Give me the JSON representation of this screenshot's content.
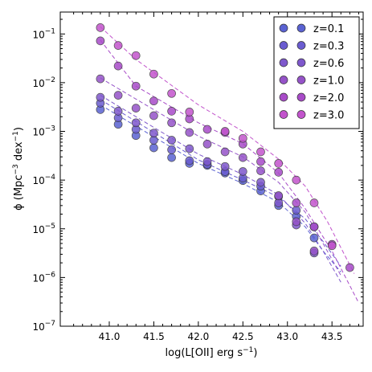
{
  "chart_data": {
    "type": "scatter",
    "xlabel": "log(L[OII] erg s",
    "xlabel_sup": "−1",
    "xlabel_tail": ")",
    "ylabel_pre": "ϕ (Mpc",
    "ylabel_sup1": "−3",
    "ylabel_mid": " dex",
    "ylabel_sup2": "−1",
    "ylabel_tail": ")",
    "xlim": [
      40.45,
      43.85
    ],
    "ylim_log10": [
      -7,
      -0.55
    ],
    "y_scale": "log",
    "xticks": [
      "41.0",
      "41.5",
      "42.0",
      "42.5",
      "43.0",
      "43.5"
    ],
    "xtick_values": [
      41.0,
      41.5,
      42.0,
      42.5,
      43.0,
      43.5
    ],
    "yticks": [
      {
        "base": "10",
        "exp": "−1",
        "value": -1
      },
      {
        "base": "10",
        "exp": "−2",
        "value": -2
      },
      {
        "base": "10",
        "exp": "−3",
        "value": -3
      },
      {
        "base": "10",
        "exp": "−4",
        "value": -4
      },
      {
        "base": "10",
        "exp": "−5",
        "value": -5
      },
      {
        "base": "10",
        "exp": "−6",
        "value": -6
      },
      {
        "base": "10",
        "exp": "−7",
        "value": -7
      }
    ],
    "legend_position": "top-right",
    "grid": false,
    "series": [
      {
        "name": "z=0.1",
        "color": "#5a62d2",
        "points": [
          [
            40.9,
            0.0028
          ],
          [
            41.1,
            0.0014
          ],
          [
            41.3,
            0.00082
          ],
          [
            41.5,
            0.00046
          ],
          [
            41.7,
            0.00029
          ],
          [
            41.9,
            0.00022
          ],
          [
            42.1,
            0.0002
          ],
          [
            42.3,
            0.00014
          ],
          [
            42.5,
            9.8e-05
          ],
          [
            42.7,
            6e-05
          ],
          [
            42.9,
            3e-05
          ],
          [
            43.1,
            1.8e-05
          ],
          [
            43.3,
            6.5e-06
          ]
        ],
        "fit_x": [
          40.9,
          42.0,
          42.5,
          42.9,
          43.2,
          43.4,
          43.6
        ],
        "fit_y": [
          0.0035,
          0.00022,
          8.5e-05,
          3.5e-05,
          1.1e-05,
          3.5e-06,
          1.3e-06
        ]
      },
      {
        "name": "z=0.3",
        "color": "#6a5cd0",
        "points": [
          [
            40.9,
            0.0038
          ],
          [
            41.1,
            0.0019
          ],
          [
            41.3,
            0.0011
          ],
          [
            41.5,
            0.00066
          ],
          [
            41.7,
            0.00042
          ],
          [
            41.9,
            0.00025
          ],
          [
            42.1,
            0.00021
          ],
          [
            42.3,
            0.00015
          ],
          [
            42.5,
            0.00011
          ],
          [
            42.7,
            7.5e-05
          ],
          [
            42.9,
            4.6e-05
          ],
          [
            43.1,
            2.4e-05
          ],
          [
            43.3,
            1.1e-05
          ]
        ],
        "fit_x": [
          40.9,
          42.0,
          42.5,
          42.9,
          43.2,
          43.4,
          43.6
        ],
        "fit_y": [
          0.0045,
          0.00026,
          0.0001,
          4.5e-05,
          1.6e-05,
          5.5e-06,
          1.7e-06
        ]
      },
      {
        "name": "z=0.6",
        "color": "#7e58cc",
        "points": [
          [
            40.9,
            0.005
          ],
          [
            41.1,
            0.0026
          ],
          [
            41.3,
            0.0015
          ],
          [
            41.5,
            0.00092
          ],
          [
            41.7,
            0.00066
          ],
          [
            41.9,
            0.00044
          ],
          [
            42.1,
            0.00024
          ],
          [
            42.3,
            0.00019
          ],
          [
            42.5,
            0.00015
          ],
          [
            42.7,
            9e-05
          ],
          [
            42.9,
            3.4e-05
          ],
          [
            43.1,
            1.2e-05
          ],
          [
            43.3,
            3.2e-06
          ]
        ],
        "fit_x": [
          40.9,
          42.0,
          42.5,
          42.9,
          43.2,
          43.4,
          43.6
        ],
        "fit_y": [
          0.0055,
          0.00034,
          0.00013,
          5e-05,
          1.3e-05,
          3.5e-06,
          8e-07
        ]
      },
      {
        "name": "z=1.0",
        "color": "#9553c8",
        "points": [
          [
            40.9,
            0.012
          ],
          [
            41.1,
            0.0055
          ],
          [
            41.3,
            0.003
          ],
          [
            41.5,
            0.0021
          ],
          [
            41.7,
            0.0015
          ],
          [
            41.9,
            0.00095
          ],
          [
            42.1,
            0.00055
          ],
          [
            42.3,
            0.00038
          ],
          [
            42.5,
            0.00029
          ],
          [
            42.7,
            0.000155
          ],
          [
            42.9,
            4.8e-05
          ],
          [
            43.1,
            1.4e-05
          ],
          [
            43.3,
            3.5e-06
          ]
        ],
        "fit_x": [
          40.9,
          42.0,
          42.5,
          42.9,
          43.2,
          43.4,
          43.6
        ],
        "fit_y": [
          0.0125,
          0.0008,
          0.0003,
          9e-05,
          2.2e-05,
          5e-06,
          1.1e-06
        ]
      },
      {
        "name": "z=2.0",
        "color": "#a84bc8",
        "points": [
          [
            40.9,
            0.072
          ],
          [
            41.1,
            0.022
          ],
          [
            41.3,
            0.0085
          ],
          [
            41.5,
            0.0042
          ],
          [
            41.7,
            0.0026
          ],
          [
            41.9,
            0.0018
          ],
          [
            42.1,
            0.0011
          ],
          [
            42.3,
            0.00095
          ],
          [
            42.5,
            0.00055
          ],
          [
            42.7,
            0.00024
          ],
          [
            42.9,
            0.000145
          ],
          [
            43.1,
            3.4e-05
          ],
          [
            43.3,
            1.1e-05
          ],
          [
            43.5,
            4.8e-06
          ],
          [
            43.7,
            1.6e-06
          ]
        ],
        "fit_x": [
          40.9,
          41.3,
          42.0,
          42.5,
          42.9,
          43.2,
          43.5,
          43.8
        ],
        "fit_y": [
          0.075,
          0.0085,
          0.0015,
          0.00056,
          0.00014,
          2.6e-05,
          3.5e-06,
          3e-07
        ]
      },
      {
        "name": "z=3.0",
        "color": "#c254cc",
        "points": [
          [
            40.9,
            0.135
          ],
          [
            41.1,
            0.058
          ],
          [
            41.3,
            0.036
          ],
          [
            41.5,
            0.015
          ],
          [
            41.7,
            0.006
          ],
          [
            41.9,
            0.0025
          ],
          [
            42.3,
            0.001
          ],
          [
            42.5,
            0.00072
          ],
          [
            42.7,
            0.00038
          ],
          [
            42.9,
            0.00022
          ],
          [
            43.1,
            0.0001
          ],
          [
            43.3,
            3.4e-05
          ],
          [
            43.5,
            4.5e-06
          ]
        ],
        "fit_x": [
          40.9,
          41.3,
          42.0,
          42.5,
          42.9,
          43.2,
          43.45,
          43.75
        ],
        "fit_y": [
          0.14,
          0.03,
          0.0035,
          0.001,
          0.00027,
          7.5e-05,
          1.4e-05,
          1.2e-06
        ]
      }
    ]
  }
}
